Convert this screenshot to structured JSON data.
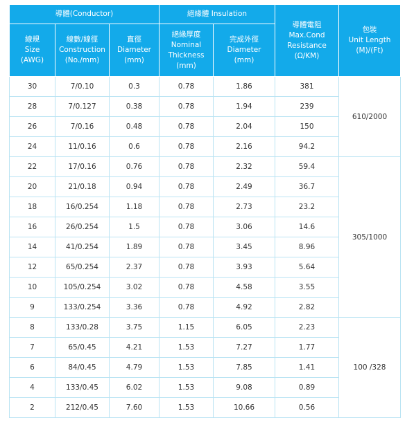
{
  "header": {
    "conductor_group": "導體(Conductor)",
    "insulation_group": "絕緣體 Insulation",
    "resistance": [
      "導體電阻",
      "Max.Cond",
      "Resistance",
      "(Ω/KM)"
    ],
    "unit_length": [
      "包裝",
      "Unit Length",
      "(M)/(Ft)"
    ],
    "size": [
      "線規",
      "Size",
      "(AWG)"
    ],
    "construction": [
      "線數/線徑",
      "Construction",
      "(No./mm)"
    ],
    "conductor_diameter": [
      "直徑",
      "Diameter",
      "(mm)"
    ],
    "thickness": [
      "絕緣厚度",
      "Nominal",
      "Thickness",
      "(mm)"
    ],
    "finished_diameter": [
      "完成外徑",
      "Diameter",
      "(mm)"
    ]
  },
  "rows": [
    [
      "30",
      "7/0.10",
      "0.3",
      "0.78",
      "1.86",
      "381"
    ],
    [
      "28",
      "7/0.127",
      "0.38",
      "0.78",
      "1.94",
      "239"
    ],
    [
      "26",
      "7/0.16",
      "0.48",
      "0.78",
      "2.04",
      "150"
    ],
    [
      "24",
      "11/0.16",
      "0.6",
      "0.78",
      "2.16",
      "94.2"
    ],
    [
      "22",
      "17/0.16",
      "0.76",
      "0.78",
      "2.32",
      "59.4"
    ],
    [
      "20",
      "21/0.18",
      "0.94",
      "0.78",
      "2.49",
      "36.7"
    ],
    [
      "18",
      "16/0.254",
      "1.18",
      "0.78",
      "2.73",
      "23.2"
    ],
    [
      "16",
      "26/0.254",
      "1.5",
      "0.78",
      "3.06",
      "14.6"
    ],
    [
      "14",
      "41/0.254",
      "1.89",
      "0.78",
      "3.45",
      "8.96"
    ],
    [
      "12",
      "65/0.254",
      "2.37",
      "0.78",
      "3.93",
      "5.64"
    ],
    [
      "10",
      "105/0.254",
      "3.02",
      "0.78",
      "4.58",
      "3.55"
    ],
    [
      "9",
      "133/0.254",
      "3.36",
      "0.78",
      "4.92",
      "2.82"
    ],
    [
      "8",
      "133/0.28",
      "3.75",
      "1.15",
      "6.05",
      "2.23"
    ],
    [
      "7",
      "65/0.45",
      "4.21",
      "1.53",
      "7.27",
      "1.77"
    ],
    [
      "6",
      "84/0.45",
      "4.79",
      "1.53",
      "7.85",
      "1.41"
    ],
    [
      "4",
      "133/0.45",
      "6.02",
      "1.53",
      "9.08",
      "0.89"
    ],
    [
      "2",
      "212/0.45",
      "7.60",
      "1.53",
      "10.66",
      "0.56"
    ]
  ],
  "packaging": [
    {
      "label": "610/2000",
      "span": 4
    },
    {
      "label": "305/1000",
      "span": 8
    },
    {
      "label": "100 /328",
      "span": 5
    }
  ]
}
